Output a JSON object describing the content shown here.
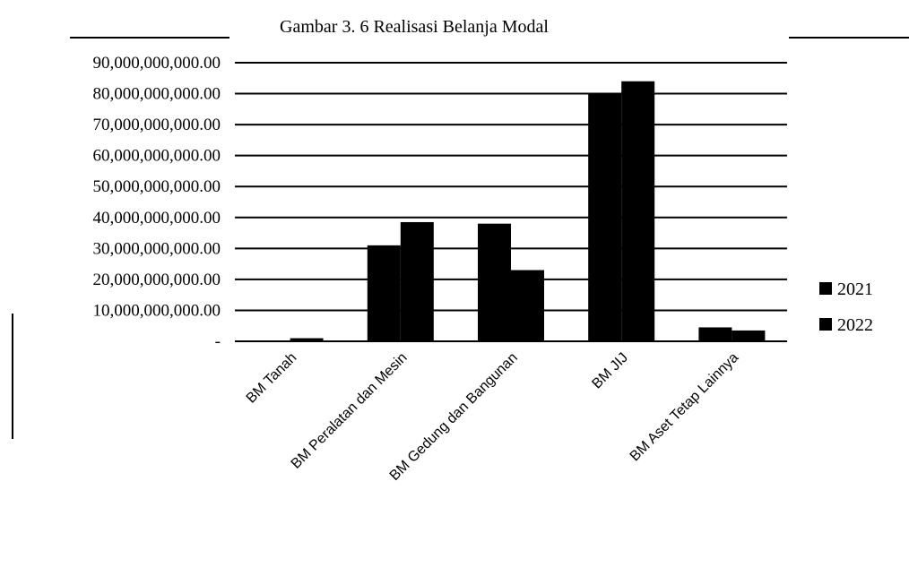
{
  "chart_data": {
    "type": "bar",
    "title": "Gambar 3. 6 Realisasi Belanja Modal",
    "categories": [
      "BM Tanah",
      "BM Peralatan dan Mesin",
      "BM Gedung dan Bangunan",
      "BM JIJ",
      "BM Aset Tetap Lainnya"
    ],
    "series": [
      {
        "name": "2021",
        "values": [
          0,
          31000000000,
          38000000000,
          80000000000,
          4500000000
        ]
      },
      {
        "name": "2022",
        "values": [
          1000000000,
          38500000000,
          23000000000,
          84000000000,
          3500000000
        ]
      }
    ],
    "y_ticks": [
      "-",
      "10,000,000,000.00",
      "20,000,000,000.00",
      "30,000,000,000.00",
      "40,000,000,000.00",
      "50,000,000,000.00",
      "60,000,000,000.00",
      "70,000,000,000.00",
      "80,000,000,000.00",
      "90,000,000,000.00"
    ],
    "ylim": [
      0,
      90000000000
    ],
    "grid": true,
    "legend_position": "right",
    "colors": [
      "#000000",
      "#000000"
    ]
  }
}
